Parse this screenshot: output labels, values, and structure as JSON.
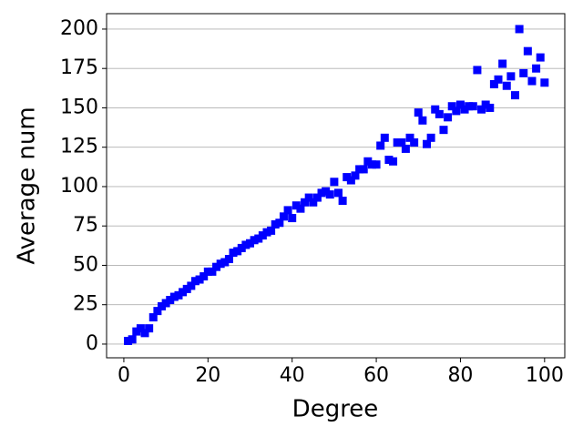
{
  "chart_data": {
    "type": "scatter",
    "xlabel": "Degree",
    "ylabel": "Average num",
    "x": [
      1,
      2,
      3,
      4,
      5,
      6,
      7,
      8,
      9,
      10,
      11,
      12,
      13,
      14,
      15,
      16,
      17,
      18,
      19,
      20,
      21,
      22,
      23,
      24,
      25,
      26,
      27,
      28,
      29,
      30,
      31,
      32,
      33,
      34,
      35,
      36,
      37,
      38,
      39,
      40,
      41,
      42,
      43,
      44,
      45,
      46,
      47,
      48,
      49,
      50,
      51,
      52,
      53,
      54,
      55,
      56,
      57,
      58,
      59,
      60,
      61,
      62,
      63,
      64,
      65,
      66,
      67,
      68,
      69,
      70,
      71,
      72,
      73,
      74,
      75,
      76,
      77,
      78,
      79,
      80,
      81,
      82,
      83,
      84,
      85,
      86,
      87,
      88,
      89,
      90,
      91,
      92,
      93,
      94,
      95,
      96,
      97,
      98,
      99,
      100
    ],
    "values": [
      2,
      3,
      8,
      10,
      7,
      10,
      17,
      21,
      24,
      26,
      28,
      30,
      31,
      33,
      35,
      37,
      40,
      41,
      43,
      46,
      46,
      49,
      51,
      52,
      54,
      58,
      59,
      61,
      63,
      64,
      66,
      67,
      69,
      71,
      72,
      76,
      77,
      81,
      85,
      80,
      88,
      86,
      90,
      93,
      90,
      93,
      96,
      97,
      95,
      103,
      96,
      91,
      106,
      104,
      107,
      111,
      111,
      116,
      114,
      114,
      126,
      131,
      117,
      116,
      128,
      128,
      124,
      131,
      128,
      147,
      142,
      127,
      131,
      149,
      146,
      136,
      144,
      151,
      148,
      152,
      149,
      151,
      151,
      174,
      149,
      152,
      150,
      165,
      168,
      178,
      164,
      170,
      158,
      200,
      172,
      186,
      167,
      175,
      182,
      166
    ],
    "color": "#0000ff",
    "marker": "square",
    "xlim": [
      -4.1,
      104.8
    ],
    "ylim": [
      -8.7,
      209.8
    ],
    "xticks": [
      0,
      20,
      40,
      60,
      80,
      100
    ],
    "yticks": [
      0,
      25,
      50,
      75,
      100,
      125,
      150,
      175,
      200
    ],
    "grid": "y"
  }
}
